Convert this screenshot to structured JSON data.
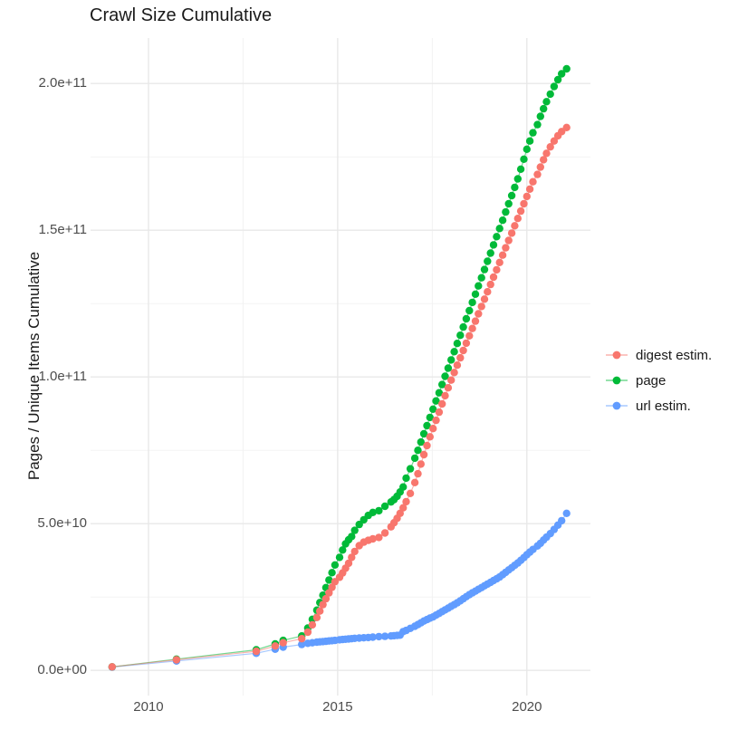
{
  "chart_data": {
    "type": "scatter",
    "title": "Crawl Size Cumulative",
    "xlabel": "",
    "ylabel": "Pages / Unique Items Cumulative",
    "legend_position": "right",
    "grid": true,
    "background_color": "#FFFFFF",
    "major_grid_color": "#E8E8E8",
    "minor_grid_color": "#F1F1F1",
    "axis_text_color": "#4D4D4D",
    "title_color": "#1A1A1A",
    "x_ticks": {
      "values": [
        2010,
        2015,
        2020
      ],
      "labels": [
        "2010",
        "2015",
        "2020"
      ]
    },
    "y_ticks": {
      "values": [
        0,
        50000000000.0,
        100000000000.0,
        150000000000.0,
        200000000000.0
      ],
      "labels": [
        "0.0e+00",
        "5.0e+10",
        "1.0e+11",
        "1.5e+11",
        "2.0e+11"
      ]
    },
    "minor_x": [
      2012.5,
      2017.5
    ],
    "minor_y": [
      25000000000.0,
      75000000000.0,
      125000000000.0,
      175000000000.0
    ],
    "x_domain": [
      2008.47,
      2021.68
    ],
    "y_domain": [
      -8600000000.0,
      215500000000.0
    ],
    "value_unit": 1000000000.0,
    "x": [
      2009.04,
      2010.74,
      2012.85,
      2013.35,
      2013.56,
      2014.05,
      2014.21,
      2014.33,
      2014.45,
      2014.53,
      2014.61,
      2014.69,
      2014.77,
      2014.85,
      2014.93,
      2015.05,
      2015.13,
      2015.21,
      2015.29,
      2015.37,
      2015.45,
      2015.57,
      2015.69,
      2015.81,
      2015.93,
      2016.09,
      2016.25,
      2016.41,
      2016.49,
      2016.57,
      2016.65,
      2016.73,
      2016.81,
      2016.92,
      2017.04,
      2017.12,
      2017.2,
      2017.28,
      2017.36,
      2017.44,
      2017.52,
      2017.6,
      2017.68,
      2017.76,
      2017.84,
      2017.92,
      2018.0,
      2018.08,
      2018.16,
      2018.24,
      2018.32,
      2018.4,
      2018.48,
      2018.56,
      2018.64,
      2018.72,
      2018.8,
      2018.88,
      2018.96,
      2019.04,
      2019.12,
      2019.2,
      2019.28,
      2019.36,
      2019.44,
      2019.52,
      2019.6,
      2019.68,
      2019.76,
      2019.84,
      2019.92,
      2020.0,
      2020.08,
      2020.16,
      2020.28,
      2020.36,
      2020.44,
      2020.52,
      2020.62,
      2020.72,
      2020.82,
      2020.92,
      2021.05
    ],
    "series": [
      {
        "name": "digest estim.",
        "color": "#F8766D",
        "values": [
          1.2,
          3.6,
          6.5,
          8.3,
          9.4,
          10.8,
          13.0,
          15.5,
          18.0,
          20.2,
          22.4,
          24.4,
          26.4,
          28.3,
          30.2,
          31.7,
          33.2,
          34.8,
          36.5,
          38.5,
          40.5,
          42.5,
          43.7,
          44.3,
          44.8,
          45.3,
          46.8,
          48.9,
          50.3,
          51.8,
          53.5,
          55.4,
          57.5,
          60.3,
          64.0,
          67.0,
          70.3,
          73.5,
          76.6,
          79.6,
          82.4,
          85.2,
          88.0,
          90.8,
          93.6,
          96.3,
          98.9,
          101.5,
          104.0,
          106.5,
          109.0,
          111.5,
          114.0,
          116.5,
          119.0,
          121.5,
          124.0,
          126.5,
          129.0,
          131.5,
          134.0,
          136.5,
          139.0,
          141.5,
          144.0,
          146.5,
          149.0,
          151.5,
          154.0,
          156.5,
          159.0,
          161.5,
          164.0,
          166.5,
          169.0,
          171.5,
          174.0,
          176.2,
          178.4,
          180.4,
          182.2,
          183.6,
          185.0
        ]
      },
      {
        "name": "page",
        "color": "#00BA38",
        "values": [
          1.2,
          3.8,
          7.0,
          9.0,
          10.2,
          11.7,
          14.4,
          17.4,
          20.5,
          23.1,
          25.6,
          28.2,
          30.8,
          33.3,
          35.9,
          38.5,
          41.0,
          43.1,
          44.5,
          45.6,
          47.7,
          49.7,
          51.3,
          52.8,
          53.8,
          54.4,
          55.9,
          57.4,
          58.2,
          59.3,
          60.8,
          62.5,
          65.5,
          68.7,
          72.3,
          75.0,
          77.8,
          80.6,
          83.4,
          86.2,
          89.0,
          91.8,
          94.6,
          97.4,
          100.2,
          103.0,
          105.8,
          108.6,
          111.4,
          114.2,
          117.0,
          119.8,
          122.6,
          125.4,
          128.2,
          131.0,
          133.8,
          136.6,
          139.4,
          142.2,
          145.0,
          147.8,
          150.6,
          153.4,
          156.2,
          159.0,
          161.8,
          164.6,
          167.5,
          170.8,
          174.2,
          177.6,
          180.4,
          183.2,
          186.0,
          188.8,
          191.4,
          193.8,
          196.4,
          199.0,
          201.3,
          203.3,
          205.0
        ]
      },
      {
        "name": "url estim.",
        "color": "#619CFF",
        "values": [
          1.1,
          3.2,
          5.8,
          7.2,
          7.9,
          8.8,
          9.2,
          9.4,
          9.6,
          9.7,
          9.8,
          9.9,
          10.0,
          10.1,
          10.2,
          10.4,
          10.5,
          10.6,
          10.7,
          10.8,
          10.9,
          11.0,
          11.1,
          11.2,
          11.3,
          11.5,
          11.6,
          11.7,
          11.8,
          11.9,
          12.0,
          13.2,
          13.6,
          14.3,
          15.0,
          15.6,
          16.2,
          16.8,
          17.3,
          17.8,
          18.2,
          18.8,
          19.4,
          20.0,
          20.6,
          21.2,
          21.8,
          22.4,
          23.0,
          23.7,
          24.4,
          25.1,
          25.8,
          26.4,
          27.0,
          27.6,
          28.2,
          28.8,
          29.4,
          30.0,
          30.6,
          31.2,
          31.8,
          32.6,
          33.4,
          34.2,
          35.0,
          35.8,
          36.6,
          37.5,
          38.4,
          39.4,
          40.3,
          41.2,
          42.4,
          43.3,
          44.4,
          45.4,
          46.6,
          48.0,
          49.5,
          51.0,
          53.5
        ]
      }
    ]
  }
}
